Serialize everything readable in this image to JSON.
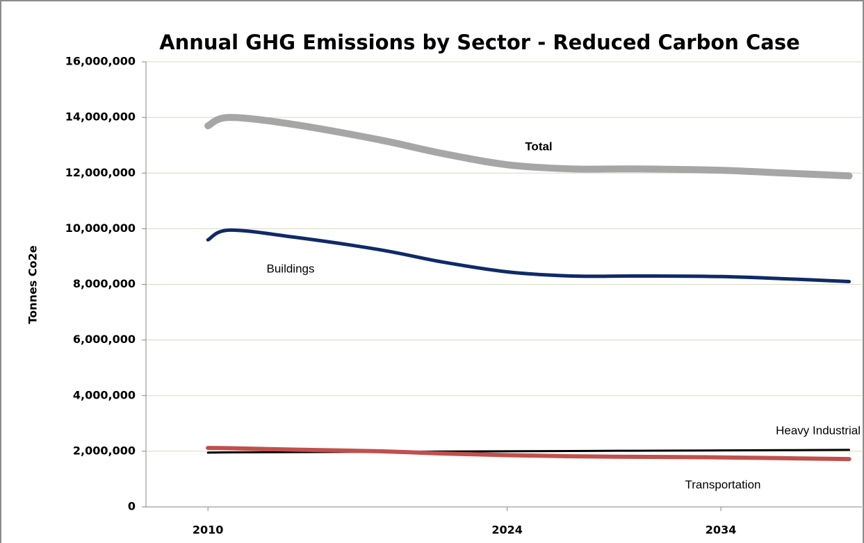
{
  "chart_data": {
    "type": "line",
    "title": "Annual GHG Emissions by Sector - Reduced Carbon Case",
    "y_label": "Tonnes Co2e",
    "x": [
      2010,
      2011,
      2014,
      2018,
      2021,
      2024,
      2027,
      2030,
      2034,
      2037,
      2040
    ],
    "xlim": [
      2007.1,
      2040.6
    ],
    "xticks": [
      2010,
      2024,
      2034
    ],
    "ylim": [
      0,
      16000000
    ],
    "yticks": [
      0,
      {
        "value": 2000000,
        "label": "2,000,000"
      },
      {
        "value": 4000000,
        "label": "4,000,000"
      },
      {
        "value": 6000000,
        "label": "6,000,000"
      },
      {
        "value": 8000000,
        "label": "8,000,000"
      },
      {
        "value": 10000000,
        "label": "10,000,000"
      },
      {
        "value": 12000000,
        "label": "12,000,000"
      },
      {
        "value": 14000000,
        "label": "14,000,000"
      },
      {
        "value": 16000000,
        "label": "16,000,000"
      }
    ],
    "grid": true,
    "series": [
      {
        "name": "Total",
        "color": "#a6a6a6",
        "values": [
          13700000,
          14000000,
          13750000,
          13200000,
          12700000,
          12300000,
          12150000,
          12150000,
          12100000,
          12000000,
          11900000
        ]
      },
      {
        "name": "Buildings",
        "color": "#0f2a68",
        "values": [
          9600000,
          9950000,
          9700000,
          9250000,
          8800000,
          8450000,
          8300000,
          8300000,
          8280000,
          8200000,
          8100000
        ]
      },
      {
        "name": "Heavy Industrial",
        "color": "#000000",
        "values": [
          1950000,
          1960000,
          1970000,
          1980000,
          1990000,
          2000000,
          2010000,
          2020000,
          2030000,
          2040000,
          2050000
        ]
      },
      {
        "name": "Transportation",
        "color": "#c0504d",
        "values": [
          2120000,
          2110000,
          2060000,
          2000000,
          1920000,
          1860000,
          1820000,
          1800000,
          1780000,
          1750000,
          1720000
        ]
      }
    ]
  }
}
